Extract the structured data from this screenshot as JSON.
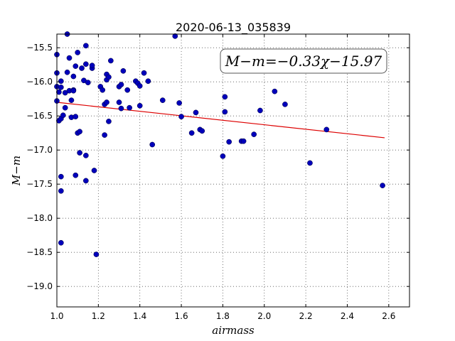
{
  "chart_data": {
    "type": "scatter",
    "title": "2020-06-13_035839",
    "xlabel": "airmass",
    "ylabel": "M−m",
    "xlim": [
      1.0,
      2.7
    ],
    "ylim": [
      -19.3,
      -15.3
    ],
    "y_inverted": true,
    "grid": true,
    "x_ticks": [
      1.0,
      1.2,
      1.4,
      1.6,
      1.8,
      2.0,
      2.2,
      2.4,
      2.6
    ],
    "x_tick_labels": [
      "1.0",
      "1.2",
      "1.4",
      "1.6",
      "1.8",
      "2.0",
      "2.2",
      "2.4",
      "2.6"
    ],
    "y_ticks": [
      -15.5,
      -16.0,
      -16.5,
      -17.0,
      -17.5,
      -18.0,
      -18.5,
      -19.0
    ],
    "y_tick_labels": [
      "−15.5",
      "−16.0",
      "−16.5",
      "−17.0",
      "−17.5",
      "−18.0",
      "−18.5",
      "−19.0"
    ],
    "annotation": "M−m=−0.33χ−15.97",
    "fit": {
      "x": [
        1.0,
        2.58
      ],
      "y": [
        -16.3,
        -16.82
      ]
    },
    "point_color": "#0000bb",
    "fit_color": "#dd0000",
    "points": [
      [
        1.0,
        -15.6
      ],
      [
        1.0,
        -15.87
      ],
      [
        1.0,
        -16.07
      ],
      [
        1.0,
        -16.28
      ],
      [
        1.01,
        -16.15
      ],
      [
        1.01,
        -16.57
      ],
      [
        1.02,
        -15.99
      ],
      [
        1.02,
        -16.08
      ],
      [
        1.02,
        -16.54
      ],
      [
        1.03,
        -16.49
      ],
      [
        1.04,
        -16.16
      ],
      [
        1.04,
        -16.38
      ],
      [
        1.05,
        -15.3
      ],
      [
        1.05,
        -15.86
      ],
      [
        1.06,
        -15.65
      ],
      [
        1.06,
        -16.13
      ],
      [
        1.07,
        -16.27
      ],
      [
        1.07,
        -16.52
      ],
      [
        1.08,
        -15.92
      ],
      [
        1.08,
        -16.12
      ],
      [
        1.08,
        -16.13
      ],
      [
        1.09,
        -15.77
      ],
      [
        1.09,
        -16.51
      ],
      [
        1.1,
        -15.57
      ],
      [
        1.1,
        -16.75
      ],
      [
        1.11,
        -16.73
      ],
      [
        1.11,
        -17.04
      ],
      [
        1.12,
        -15.8
      ],
      [
        1.13,
        -15.98
      ],
      [
        1.14,
        -15.74
      ],
      [
        1.14,
        -15.47
      ],
      [
        1.14,
        -17.08
      ],
      [
        1.15,
        -16.01
      ],
      [
        1.17,
        -15.8
      ],
      [
        1.17,
        -15.76
      ],
      [
        1.18,
        -17.3
      ],
      [
        1.19,
        -18.53
      ],
      [
        1.21,
        -16.07
      ],
      [
        1.22,
        -16.12
      ],
      [
        1.23,
        -16.33
      ],
      [
        1.23,
        -16.78
      ],
      [
        1.24,
        -15.89
      ],
      [
        1.24,
        -15.97
      ],
      [
        1.24,
        -16.3
      ],
      [
        1.25,
        -15.93
      ],
      [
        1.25,
        -16.58
      ],
      [
        1.26,
        -15.69
      ],
      [
        1.3,
        -16.07
      ],
      [
        1.3,
        -16.3
      ],
      [
        1.31,
        -16.04
      ],
      [
        1.31,
        -16.39
      ],
      [
        1.32,
        -15.84
      ],
      [
        1.34,
        -16.12
      ],
      [
        1.35,
        -16.38
      ],
      [
        1.38,
        -15.99
      ],
      [
        1.39,
        -16.02
      ],
      [
        1.4,
        -16.06
      ],
      [
        1.4,
        -16.35
      ],
      [
        1.42,
        -15.87
      ],
      [
        1.44,
        -15.99
      ],
      [
        1.46,
        -16.92
      ],
      [
        1.51,
        -16.27
      ],
      [
        1.57,
        -15.33
      ],
      [
        1.59,
        -16.31
      ],
      [
        1.6,
        -16.51
      ],
      [
        1.65,
        -16.75
      ],
      [
        1.67,
        -16.45
      ],
      [
        1.69,
        -16.7
      ],
      [
        1.7,
        -16.72
      ],
      [
        1.8,
        -17.09
      ],
      [
        1.81,
        -16.22
      ],
      [
        1.81,
        -16.44
      ],
      [
        1.83,
        -16.88
      ],
      [
        1.89,
        -16.87
      ],
      [
        1.9,
        -16.87
      ],
      [
        1.95,
        -16.77
      ],
      [
        1.98,
        -16.42
      ],
      [
        2.05,
        -16.14
      ],
      [
        2.1,
        -16.33
      ],
      [
        2.22,
        -17.19
      ],
      [
        2.3,
        -16.7
      ],
      [
        2.57,
        -17.52
      ],
      [
        1.02,
        -17.39
      ],
      [
        1.02,
        -17.6
      ],
      [
        1.02,
        -18.36
      ],
      [
        1.09,
        -17.37
      ],
      [
        1.14,
        -17.45
      ]
    ]
  }
}
